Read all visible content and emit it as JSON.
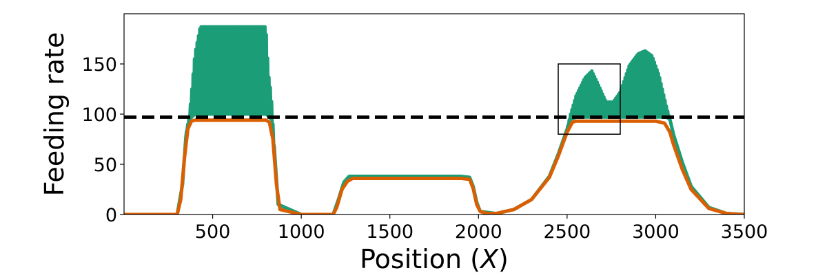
{
  "chart_data": {
    "type": "line",
    "title": "",
    "xlabel": "Position (X)",
    "xlabel_parts": {
      "before": "Position (",
      "var": "X",
      "after": ")"
    },
    "ylabel": "Feeding rate",
    "xlim": [
      0,
      3500
    ],
    "ylim": [
      0,
      200
    ],
    "x_ticks": [
      500,
      1000,
      1500,
      2000,
      2500,
      3000,
      3500
    ],
    "y_ticks": [
      0,
      50,
      100,
      150
    ],
    "grid": false,
    "legend": "none",
    "colors": {
      "green_series": "#1b9e77",
      "orange_series": "#d95f02",
      "threshold": "#000000",
      "inset_box": "#000000"
    },
    "threshold": 97,
    "inset_box": {
      "x": [
        2450,
        2800
      ],
      "y": [
        80,
        150
      ]
    },
    "series": [
      {
        "color": "#1b9e77",
        "style": "oscillating",
        "envelope_x": [
          0,
          300,
          330,
          350,
          370,
          400,
          430,
          800,
          815,
          830,
          850,
          870,
          1000,
          1180,
          1210,
          1240,
          1270,
          1300,
          1900,
          1950,
          1970,
          1990,
          2010,
          2100,
          2200,
          2300,
          2400,
          2450,
          2500,
          2520,
          2550,
          2600,
          2640,
          2680,
          2720,
          2760,
          2800,
          2850,
          2900,
          2940,
          2980,
          3020,
          3060,
          3080,
          3100,
          3150,
          3200,
          3300,
          3400,
          3500
        ],
        "envelope_upper": [
          0,
          0,
          30,
          80,
          100,
          160,
          187,
          187,
          140,
          120,
          60,
          10,
          0,
          0,
          15,
          32,
          38,
          38,
          38,
          37,
          28,
          12,
          3,
          1,
          5,
          15,
          38,
          60,
          85,
          100,
          118,
          136,
          143,
          128,
          112,
          112,
          122,
          148,
          160,
          163,
          158,
          138,
          108,
          95,
          80,
          52,
          28,
          7,
          1,
          0
        ],
        "envelope_lower": [
          0,
          0,
          30,
          80,
          95,
          100,
          100,
          100,
          98,
          95,
          60,
          10,
          0,
          0,
          15,
          32,
          38,
          38,
          38,
          37,
          28,
          12,
          3,
          1,
          5,
          15,
          38,
          60,
          85,
          95,
          97,
          97,
          97,
          97,
          97,
          97,
          97,
          97,
          97,
          97,
          97,
          97,
          97,
          95,
          80,
          52,
          28,
          7,
          1,
          0
        ]
      },
      {
        "color": "#d95f02",
        "style": "line",
        "x": [
          0,
          300,
          320,
          340,
          360,
          380,
          400,
          800,
          820,
          840,
          860,
          880,
          1000,
          1180,
          1200,
          1230,
          1260,
          1290,
          1350,
          1900,
          1950,
          1970,
          1990,
          2010,
          2050,
          2100,
          2200,
          2300,
          2400,
          2450,
          2500,
          2530,
          2550,
          2700,
          3000,
          3050,
          3080,
          3100,
          3150,
          3200,
          3300,
          3400,
          3500
        ],
        "y": [
          0,
          0,
          15,
          55,
          85,
          93,
          94,
          94,
          92,
          75,
          30,
          5,
          0,
          0,
          7,
          25,
          33,
          36,
          36,
          36,
          35,
          26,
          10,
          3,
          1,
          1,
          5,
          15,
          37,
          58,
          82,
          92,
          93,
          93,
          93,
          91,
          82,
          70,
          45,
          25,
          6,
          1,
          0
        ]
      }
    ]
  }
}
